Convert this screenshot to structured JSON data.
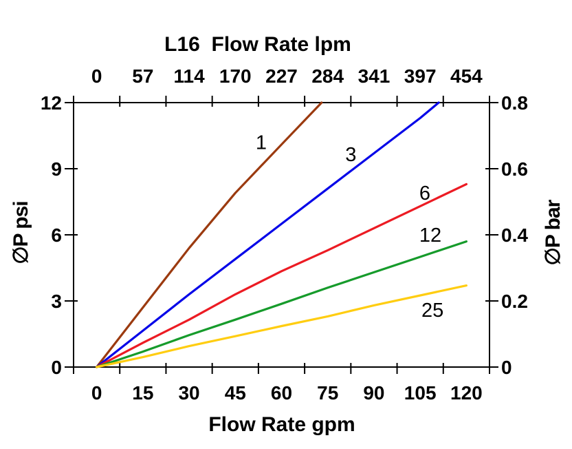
{
  "chart_data": {
    "type": "line",
    "title": "L16  Flow Rate lpm",
    "grid": false,
    "legend": "none (inline labels next to each curve)",
    "axes": {
      "bottom": {
        "label": "Flow Rate gpm",
        "ticks": [
          0,
          15,
          30,
          45,
          60,
          75,
          90,
          105,
          120
        ],
        "min": 0,
        "max": 120
      },
      "top": {
        "label": "L16  Flow Rate lpm",
        "ticks": [
          0,
          57,
          114,
          170,
          227,
          284,
          341,
          397,
          454
        ],
        "min": 0,
        "max": 454
      },
      "left": {
        "label": "∅P psi",
        "ticks": [
          12,
          9,
          6,
          3,
          0
        ],
        "min": 0,
        "max": 12
      },
      "right": {
        "label": "∅P bar",
        "ticks": [
          0.8,
          0.6,
          0.4,
          0.2,
          0
        ],
        "min": 0,
        "max": 0.8
      }
    },
    "series": [
      {
        "name": "1",
        "color": "#9B3A0F",
        "x": [
          0,
          15,
          30,
          45,
          60,
          73
        ],
        "y": [
          0,
          2.7,
          5.4,
          7.9,
          10.1,
          12
        ],
        "label": "1",
        "label_at": [
          53.4,
          10.2
        ]
      },
      {
        "name": "3",
        "color": "#0505E8",
        "x": [
          0,
          15,
          30,
          45,
          60,
          75,
          90,
          105,
          111
        ],
        "y": [
          0,
          1.65,
          3.3,
          4.9,
          6.5,
          8.1,
          9.7,
          11.3,
          12
        ],
        "label": "3",
        "label_at": [
          82.5,
          9.65
        ]
      },
      {
        "name": "6",
        "color": "#EC1B23",
        "x": [
          0,
          15,
          30,
          45,
          60,
          75,
          90,
          105,
          120
        ],
        "y": [
          0,
          1.1,
          2.15,
          3.3,
          4.35,
          5.3,
          6.3,
          7.3,
          8.3
        ],
        "label": "6",
        "label_at": [
          106.5,
          7.9
        ]
      },
      {
        "name": "12",
        "color": "#169B2B",
        "x": [
          0,
          15,
          30,
          45,
          60,
          75,
          90,
          105,
          120
        ],
        "y": [
          0,
          0.7,
          1.45,
          2.15,
          2.87,
          3.6,
          4.3,
          5.0,
          5.7
        ],
        "label": "12",
        "label_at": [
          108.3,
          6.0
        ]
      },
      {
        "name": "25",
        "color": "#FFCD11",
        "x": [
          0,
          15,
          30,
          45,
          60,
          75,
          90,
          105,
          120
        ],
        "y": [
          0,
          0.45,
          0.95,
          1.4,
          1.86,
          2.3,
          2.8,
          3.25,
          3.7
        ],
        "label": "25",
        "label_at": [
          109,
          2.6
        ]
      }
    ]
  }
}
